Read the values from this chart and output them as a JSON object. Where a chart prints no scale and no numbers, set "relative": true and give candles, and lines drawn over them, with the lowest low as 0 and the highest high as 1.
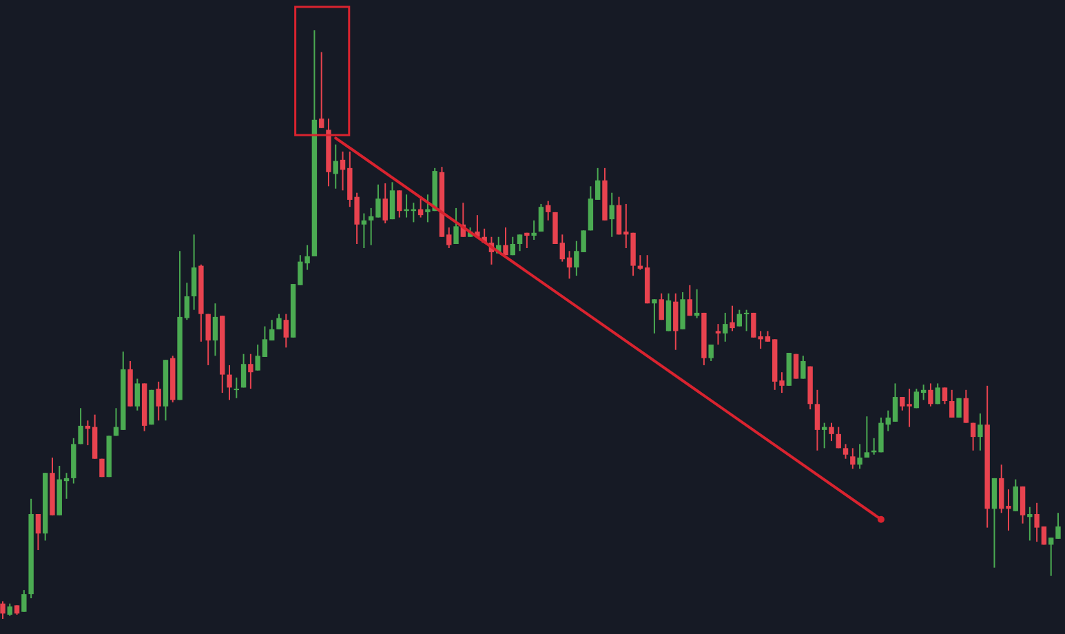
{
  "chart_data": {
    "type": "candlestick",
    "relative": true,
    "categories": [
      null,
      null,
      null,
      null,
      null,
      null,
      null,
      null,
      null,
      null,
      null,
      null,
      null,
      null,
      null,
      null,
      null,
      null,
      null,
      null,
      null,
      null,
      null,
      null,
      null,
      null,
      null,
      null,
      null,
      null,
      null,
      null,
      null,
      null,
      null,
      null,
      null,
      null,
      null,
      null,
      null,
      null,
      null,
      null,
      null,
      null,
      null,
      null,
      null,
      null,
      null,
      null,
      null,
      null,
      null,
      null,
      null,
      null,
      null,
      null,
      null,
      null,
      null,
      null,
      null,
      null,
      null,
      null,
      null,
      null,
      null,
      null,
      null,
      null,
      null,
      null,
      null,
      null,
      null,
      null,
      null,
      null,
      null,
      null,
      null,
      null,
      null,
      null,
      null,
      null,
      null,
      null,
      null,
      null,
      null,
      null,
      null,
      null,
      null,
      null,
      null,
      null,
      null,
      null,
      null,
      null,
      null,
      null,
      null,
      null,
      null,
      null,
      null,
      null,
      null,
      null,
      null,
      null,
      null,
      null,
      null,
      null,
      null,
      null,
      null,
      null,
      null,
      null,
      null,
      null,
      null,
      null,
      null,
      null,
      null,
      null,
      null,
      null,
      null,
      null,
      null,
      null,
      null,
      null,
      null,
      null,
      null,
      null,
      null,
      null
    ],
    "ohlc": [
      [
        0.026,
        0.03,
        0,
        0.009
      ],
      [
        0.007,
        0.026,
        0.005,
        0.021
      ],
      [
        0.023,
        0.023,
        0.007,
        0.009
      ],
      [
        0.012,
        0.049,
        0.012,
        0.042
      ],
      [
        0.042,
        0.204,
        0.035,
        0.178
      ],
      [
        0.178,
        0.178,
        0.117,
        0.145
      ],
      [
        0.145,
        0.248,
        0.133,
        0.248
      ],
      [
        0.248,
        0.274,
        0.176,
        0.176
      ],
      [
        0.176,
        0.26,
        0.176,
        0.237
      ],
      [
        0.234,
        0.248,
        0.204,
        0.239
      ],
      [
        0.239,
        0.307,
        0.23,
        0.297
      ],
      [
        0.297,
        0.358,
        0.297,
        0.328
      ],
      [
        0.328,
        0.337,
        0.295,
        0.323
      ],
      [
        0.326,
        0.347,
        0.272,
        0.272
      ],
      [
        0.272,
        0.272,
        0.241,
        0.241
      ],
      [
        0.241,
        0.311,
        0.241,
        0.311
      ],
      [
        0.311,
        0.358,
        0.311,
        0.326
      ],
      [
        0.321,
        0.454,
        0.321,
        0.424
      ],
      [
        0.424,
        0.438,
        0.361,
        0.361
      ],
      [
        0.361,
        0.408,
        0.354,
        0.4
      ],
      [
        0.4,
        0.4,
        0.319,
        0.328
      ],
      [
        0.33,
        0.389,
        0.33,
        0.389
      ],
      [
        0.391,
        0.403,
        0.337,
        0.361
      ],
      [
        0.361,
        0.44,
        0.337,
        0.44
      ],
      [
        0.443,
        0.447,
        0.368,
        0.372
      ],
      [
        0.372,
        0.625,
        0.372,
        0.513
      ],
      [
        0.511,
        0.571,
        0.508,
        0.548
      ],
      [
        0.548,
        0.653,
        0.525,
        0.597
      ],
      [
        0.6,
        0.602,
        0.471,
        0.518
      ],
      [
        0.518,
        0.518,
        0.431,
        0.473
      ],
      [
        0.473,
        0.536,
        0.447,
        0.513
      ],
      [
        0.515,
        0.515,
        0.384,
        0.415
      ],
      [
        0.415,
        0.431,
        0.372,
        0.393
      ],
      [
        0.389,
        0.41,
        0.375,
        0.391
      ],
      [
        0.393,
        0.45,
        0.393,
        0.433
      ],
      [
        0.433,
        0.45,
        0.391,
        0.419
      ],
      [
        0.422,
        0.466,
        0.422,
        0.447
      ],
      [
        0.445,
        0.497,
        0.445,
        0.475
      ],
      [
        0.473,
        0.508,
        0.473,
        0.492
      ],
      [
        0.492,
        0.518,
        0.492,
        0.511
      ],
      [
        0.508,
        0.518,
        0.461,
        0.478
      ],
      [
        0.478,
        0.569,
        0.478,
        0.569
      ],
      [
        0.567,
        0.618,
        0.567,
        0.607
      ],
      [
        0.604,
        0.635,
        0.593,
        0.616
      ],
      [
        0.616,
        1,
        0.616,
        0.848
      ],
      [
        0.85,
        0.963,
        0.834,
        0.834
      ],
      [
        0.831,
        0.85,
        0.735,
        0.759
      ],
      [
        0.756,
        0.806,
        0.731,
        0.778
      ],
      [
        0.78,
        0.794,
        0.728,
        0.763
      ],
      [
        0.766,
        0.794,
        0.7,
        0.712
      ],
      [
        0.717,
        0.724,
        0.637,
        0.67
      ],
      [
        0.67,
        0.689,
        0.63,
        0.677
      ],
      [
        0.677,
        0.698,
        0.635,
        0.684
      ],
      [
        0.682,
        0.738,
        0.682,
        0.714
      ],
      [
        0.714,
        0.74,
        0.672,
        0.677
      ],
      [
        0.679,
        0.742,
        0.679,
        0.728
      ],
      [
        0.728,
        0.728,
        0.682,
        0.693
      ],
      [
        0.693,
        0.721,
        0.682,
        0.696
      ],
      [
        0.693,
        0.707,
        0.674,
        0.696
      ],
      [
        0.696,
        0.719,
        0.682,
        0.686
      ],
      [
        0.691,
        0.721,
        0.674,
        0.696
      ],
      [
        0.693,
        0.766,
        0.693,
        0.761
      ],
      [
        0.759,
        0.768,
        0.649,
        0.649
      ],
      [
        0.653,
        0.665,
        0.63,
        0.635
      ],
      [
        0.637,
        0.698,
        0.637,
        0.667
      ],
      [
        0.67,
        0.707,
        0.649,
        0.649
      ],
      [
        0.649,
        0.665,
        0.649,
        0.658
      ],
      [
        0.658,
        0.686,
        0.649,
        0.649
      ],
      [
        0.649,
        0.663,
        0.639,
        0.639
      ],
      [
        0.639,
        0.649,
        0.602,
        0.623
      ],
      [
        0.621,
        0.649,
        0.621,
        0.635
      ],
      [
        0.635,
        0.665,
        0.618,
        0.618
      ],
      [
        0.618,
        0.649,
        0.618,
        0.637
      ],
      [
        0.637,
        0.653,
        0.625,
        0.653
      ],
      [
        0.656,
        0.656,
        0.63,
        0.651
      ],
      [
        0.651,
        0.677,
        0.644,
        0.656
      ],
      [
        0.658,
        0.705,
        0.658,
        0.7
      ],
      [
        0.703,
        0.71,
        0.677,
        0.691
      ],
      [
        0.691,
        0.691,
        0.637,
        0.637
      ],
      [
        0.639,
        0.653,
        0.607,
        0.611
      ],
      [
        0.614,
        0.625,
        0.578,
        0.597
      ],
      [
        0.597,
        0.642,
        0.583,
        0.625
      ],
      [
        0.623,
        0.66,
        0.623,
        0.66
      ],
      [
        0.66,
        0.735,
        0.66,
        0.714
      ],
      [
        0.712,
        0.766,
        0.712,
        0.745
      ],
      [
        0.745,
        0.766,
        0.677,
        0.677
      ],
      [
        0.679,
        0.724,
        0.649,
        0.703
      ],
      [
        0.703,
        0.717,
        0.653,
        0.653
      ],
      [
        0.658,
        0.705,
        0.63,
        0.653
      ],
      [
        0.656,
        0.656,
        0.583,
        0.6
      ],
      [
        0.6,
        0.618,
        0.593,
        0.595
      ],
      [
        0.597,
        0.618,
        0.536,
        0.536
      ],
      [
        0.536,
        0.543,
        0.485,
        0.543
      ],
      [
        0.543,
        0.553,
        0.508,
        0.508
      ],
      [
        0.489,
        0.553,
        0.489,
        0.541
      ],
      [
        0.539,
        0.553,
        0.457,
        0.489
      ],
      [
        0.492,
        0.555,
        0.492,
        0.543
      ],
      [
        0.543,
        0.567,
        0.515,
        0.515
      ],
      [
        0.515,
        0.56,
        0.511,
        0.52
      ],
      [
        0.52,
        0.52,
        0.431,
        0.443
      ],
      [
        0.443,
        0.466,
        0.438,
        0.466
      ],
      [
        0.489,
        0.501,
        0.466,
        0.485
      ],
      [
        0.485,
        0.52,
        0.471,
        0.501
      ],
      [
        0.504,
        0.532,
        0.489,
        0.494
      ],
      [
        0.497,
        0.525,
        0.497,
        0.518
      ],
      [
        0.518,
        0.525,
        0.489,
        0.52
      ],
      [
        0.52,
        0.52,
        0.478,
        0.478
      ],
      [
        0.48,
        0.489,
        0.459,
        0.475
      ],
      [
        0.48,
        0.489,
        0.471,
        0.471
      ],
      [
        0.475,
        0.475,
        0.389,
        0.403
      ],
      [
        0.405,
        0.419,
        0.384,
        0.396
      ],
      [
        0.396,
        0.452,
        0.396,
        0.452
      ],
      [
        0.45,
        0.45,
        0.408,
        0.408
      ],
      [
        0.408,
        0.447,
        0.408,
        0.438
      ],
      [
        0.429,
        0.429,
        0.356,
        0.365
      ],
      [
        0.365,
        0.389,
        0.286,
        0.321
      ],
      [
        0.321,
        0.333,
        0.29,
        0.326
      ],
      [
        0.326,
        0.333,
        0.302,
        0.314
      ],
      [
        0.314,
        0.326,
        0.29,
        0.29
      ],
      [
        0.29,
        0.297,
        0.272,
        0.279
      ],
      [
        0.276,
        0.29,
        0.255,
        0.262
      ],
      [
        0.262,
        0.297,
        0.255,
        0.274
      ],
      [
        0.274,
        0.344,
        0.274,
        0.283
      ],
      [
        0.283,
        0.307,
        0.279,
        0.286
      ],
      [
        0.283,
        0.342,
        0.283,
        0.333
      ],
      [
        0.33,
        0.354,
        0.319,
        0.342
      ],
      [
        0.335,
        0.4,
        0.335,
        0.377
      ],
      [
        0.377,
        0.377,
        0.354,
        0.361
      ],
      [
        0.365,
        0.391,
        0.326,
        0.361
      ],
      [
        0.358,
        0.391,
        0.358,
        0.386
      ],
      [
        0.384,
        0.398,
        0.372,
        0.389
      ],
      [
        0.389,
        0.4,
        0.361,
        0.365
      ],
      [
        0.365,
        0.4,
        0.365,
        0.393
      ],
      [
        0.393,
        0.393,
        0.365,
        0.37
      ],
      [
        0.37,
        0.389,
        0.342,
        0.342
      ],
      [
        0.342,
        0.375,
        0.342,
        0.375
      ],
      [
        0.375,
        0.389,
        0.333,
        0.333
      ],
      [
        0.333,
        0.333,
        0.286,
        0.309
      ],
      [
        0.309,
        0.349,
        0.286,
        0.33
      ],
      [
        0.33,
        0.396,
        0.155,
        0.187
      ],
      [
        0.187,
        0.239,
        0.087,
        0.239
      ],
      [
        0.239,
        0.262,
        0.18,
        0.187
      ],
      [
        0.192,
        0.22,
        0.15,
        0.187
      ],
      [
        0.183,
        0.237,
        0.183,
        0.225
      ],
      [
        0.225,
        0.225,
        0.162,
        0.176
      ],
      [
        0.173,
        0.19,
        0.133,
        0.178
      ],
      [
        0.178,
        0.197,
        0.131,
        0.155
      ],
      [
        0.157,
        0.157,
        0.126,
        0.126
      ],
      [
        0.126,
        0.138,
        0.073,
        0.138
      ],
      [
        0.136,
        0.18,
        0.136,
        0.157
      ]
    ],
    "colors": [
      "#e8434f",
      "#4bab52",
      "#e8434f",
      "#4bab52",
      "#4bab52",
      "#e8434f",
      "#4bab52",
      "#e8434f",
      "#4bab52",
      "#4bab52",
      "#4bab52",
      "#4bab52",
      "#e8434f",
      "#e8434f",
      "#e8434f",
      "#4bab52",
      "#4bab52",
      "#4bab52",
      "#e8434f",
      "#4bab52",
      "#e8434f",
      "#4bab52",
      "#e8434f",
      "#4bab52",
      "#e8434f",
      "#4bab52",
      "#4bab52",
      "#4bab52",
      "#e8434f",
      "#e8434f",
      "#4bab52",
      "#e8434f",
      "#e8434f",
      "#4bab52",
      "#4bab52",
      "#e8434f",
      "#4bab52",
      "#4bab52",
      "#4bab52",
      "#4bab52",
      "#e8434f",
      "#4bab52",
      "#4bab52",
      "#4bab52",
      "#4bab52",
      "#e8434f",
      "#e8434f",
      "#4bab52",
      "#e8434f",
      "#e8434f",
      "#e8434f",
      "#4bab52",
      "#4bab52",
      "#4bab52",
      "#e8434f",
      "#4bab52",
      "#e8434f",
      "#4bab52",
      "#4bab52",
      "#e8434f",
      "#4bab52",
      "#4bab52",
      "#e8434f",
      "#e8434f",
      "#4bab52",
      "#e8434f",
      "#4bab52",
      "#e8434f",
      "#e8434f",
      "#e8434f",
      "#4bab52",
      "#e8434f",
      "#4bab52",
      "#4bab52",
      "#e8434f",
      "#4bab52",
      "#4bab52",
      "#e8434f",
      "#e8434f",
      "#e8434f",
      "#e8434f",
      "#4bab52",
      "#4bab52",
      "#4bab52",
      "#4bab52",
      "#e8434f",
      "#4bab52",
      "#e8434f",
      "#e8434f",
      "#e8434f",
      "#e8434f",
      "#e8434f",
      "#4bab52",
      "#e8434f",
      "#4bab52",
      "#e8434f",
      "#4bab52",
      "#e8434f",
      "#4bab52",
      "#e8434f",
      "#4bab52",
      "#e8434f",
      "#4bab52",
      "#e8434f",
      "#4bab52",
      "#4bab52",
      "#e8434f",
      "#e8434f",
      "#e8434f",
      "#e8434f",
      "#e8434f",
      "#4bab52",
      "#e8434f",
      "#4bab52",
      "#e8434f",
      "#e8434f",
      "#4bab52",
      "#e8434f",
      "#e8434f",
      "#e8434f",
      "#e8434f",
      "#4bab52",
      "#4bab52",
      "#4bab52",
      "#4bab52",
      "#4bab52",
      "#4bab52",
      "#e8434f",
      "#e8434f",
      "#4bab52",
      "#4bab52",
      "#e8434f",
      "#4bab52",
      "#e8434f",
      "#e8434f",
      "#4bab52",
      "#e8434f",
      "#e8434f",
      "#4bab52",
      "#e8434f",
      "#4bab52",
      "#e8434f",
      "#e8434f",
      "#4bab52",
      "#e8434f",
      "#4bab52",
      "#e8434f",
      "#e8434f",
      "#4bab52",
      "#4bab52"
    ],
    "series": [
      {
        "type": "line",
        "color": "#d9232f",
        "values": [
          null,
          null,
          null,
          null,
          null,
          null,
          null,
          null,
          null,
          null,
          null,
          null,
          null,
          null,
          null,
          null,
          null,
          null,
          null,
          null,
          null,
          null,
          null,
          null,
          null,
          null,
          null,
          null,
          null,
          null,
          null,
          null,
          null,
          null,
          null,
          null,
          null,
          null,
          null,
          null,
          null,
          null,
          null,
          null,
          null,
          null,
          null,
          0.817,
          null,
          null,
          null,
          null,
          null,
          null,
          null,
          null,
          null,
          null,
          null,
          null,
          null,
          null,
          null,
          null,
          null,
          null,
          null,
          null,
          null,
          null,
          null,
          null,
          null,
          null,
          null,
          null,
          null,
          null,
          null,
          null,
          null,
          null,
          null,
          null,
          null,
          null,
          null,
          null,
          null,
          null,
          null,
          null,
          null,
          null,
          null,
          null,
          null,
          null,
          null,
          null,
          null,
          null,
          null,
          null,
          null,
          null,
          null,
          null,
          null,
          null,
          null,
          null,
          null,
          null,
          null,
          null,
          null,
          null,
          null,
          null,
          null,
          null,
          null,
          null,
          0.169,
          null,
          null,
          null,
          null,
          null,
          null,
          null,
          null,
          null,
          null,
          null,
          null,
          null,
          null,
          null,
          null,
          null,
          null,
          null,
          null,
          null,
          null,
          null,
          null,
          null
        ]
      }
    ]
  }
}
